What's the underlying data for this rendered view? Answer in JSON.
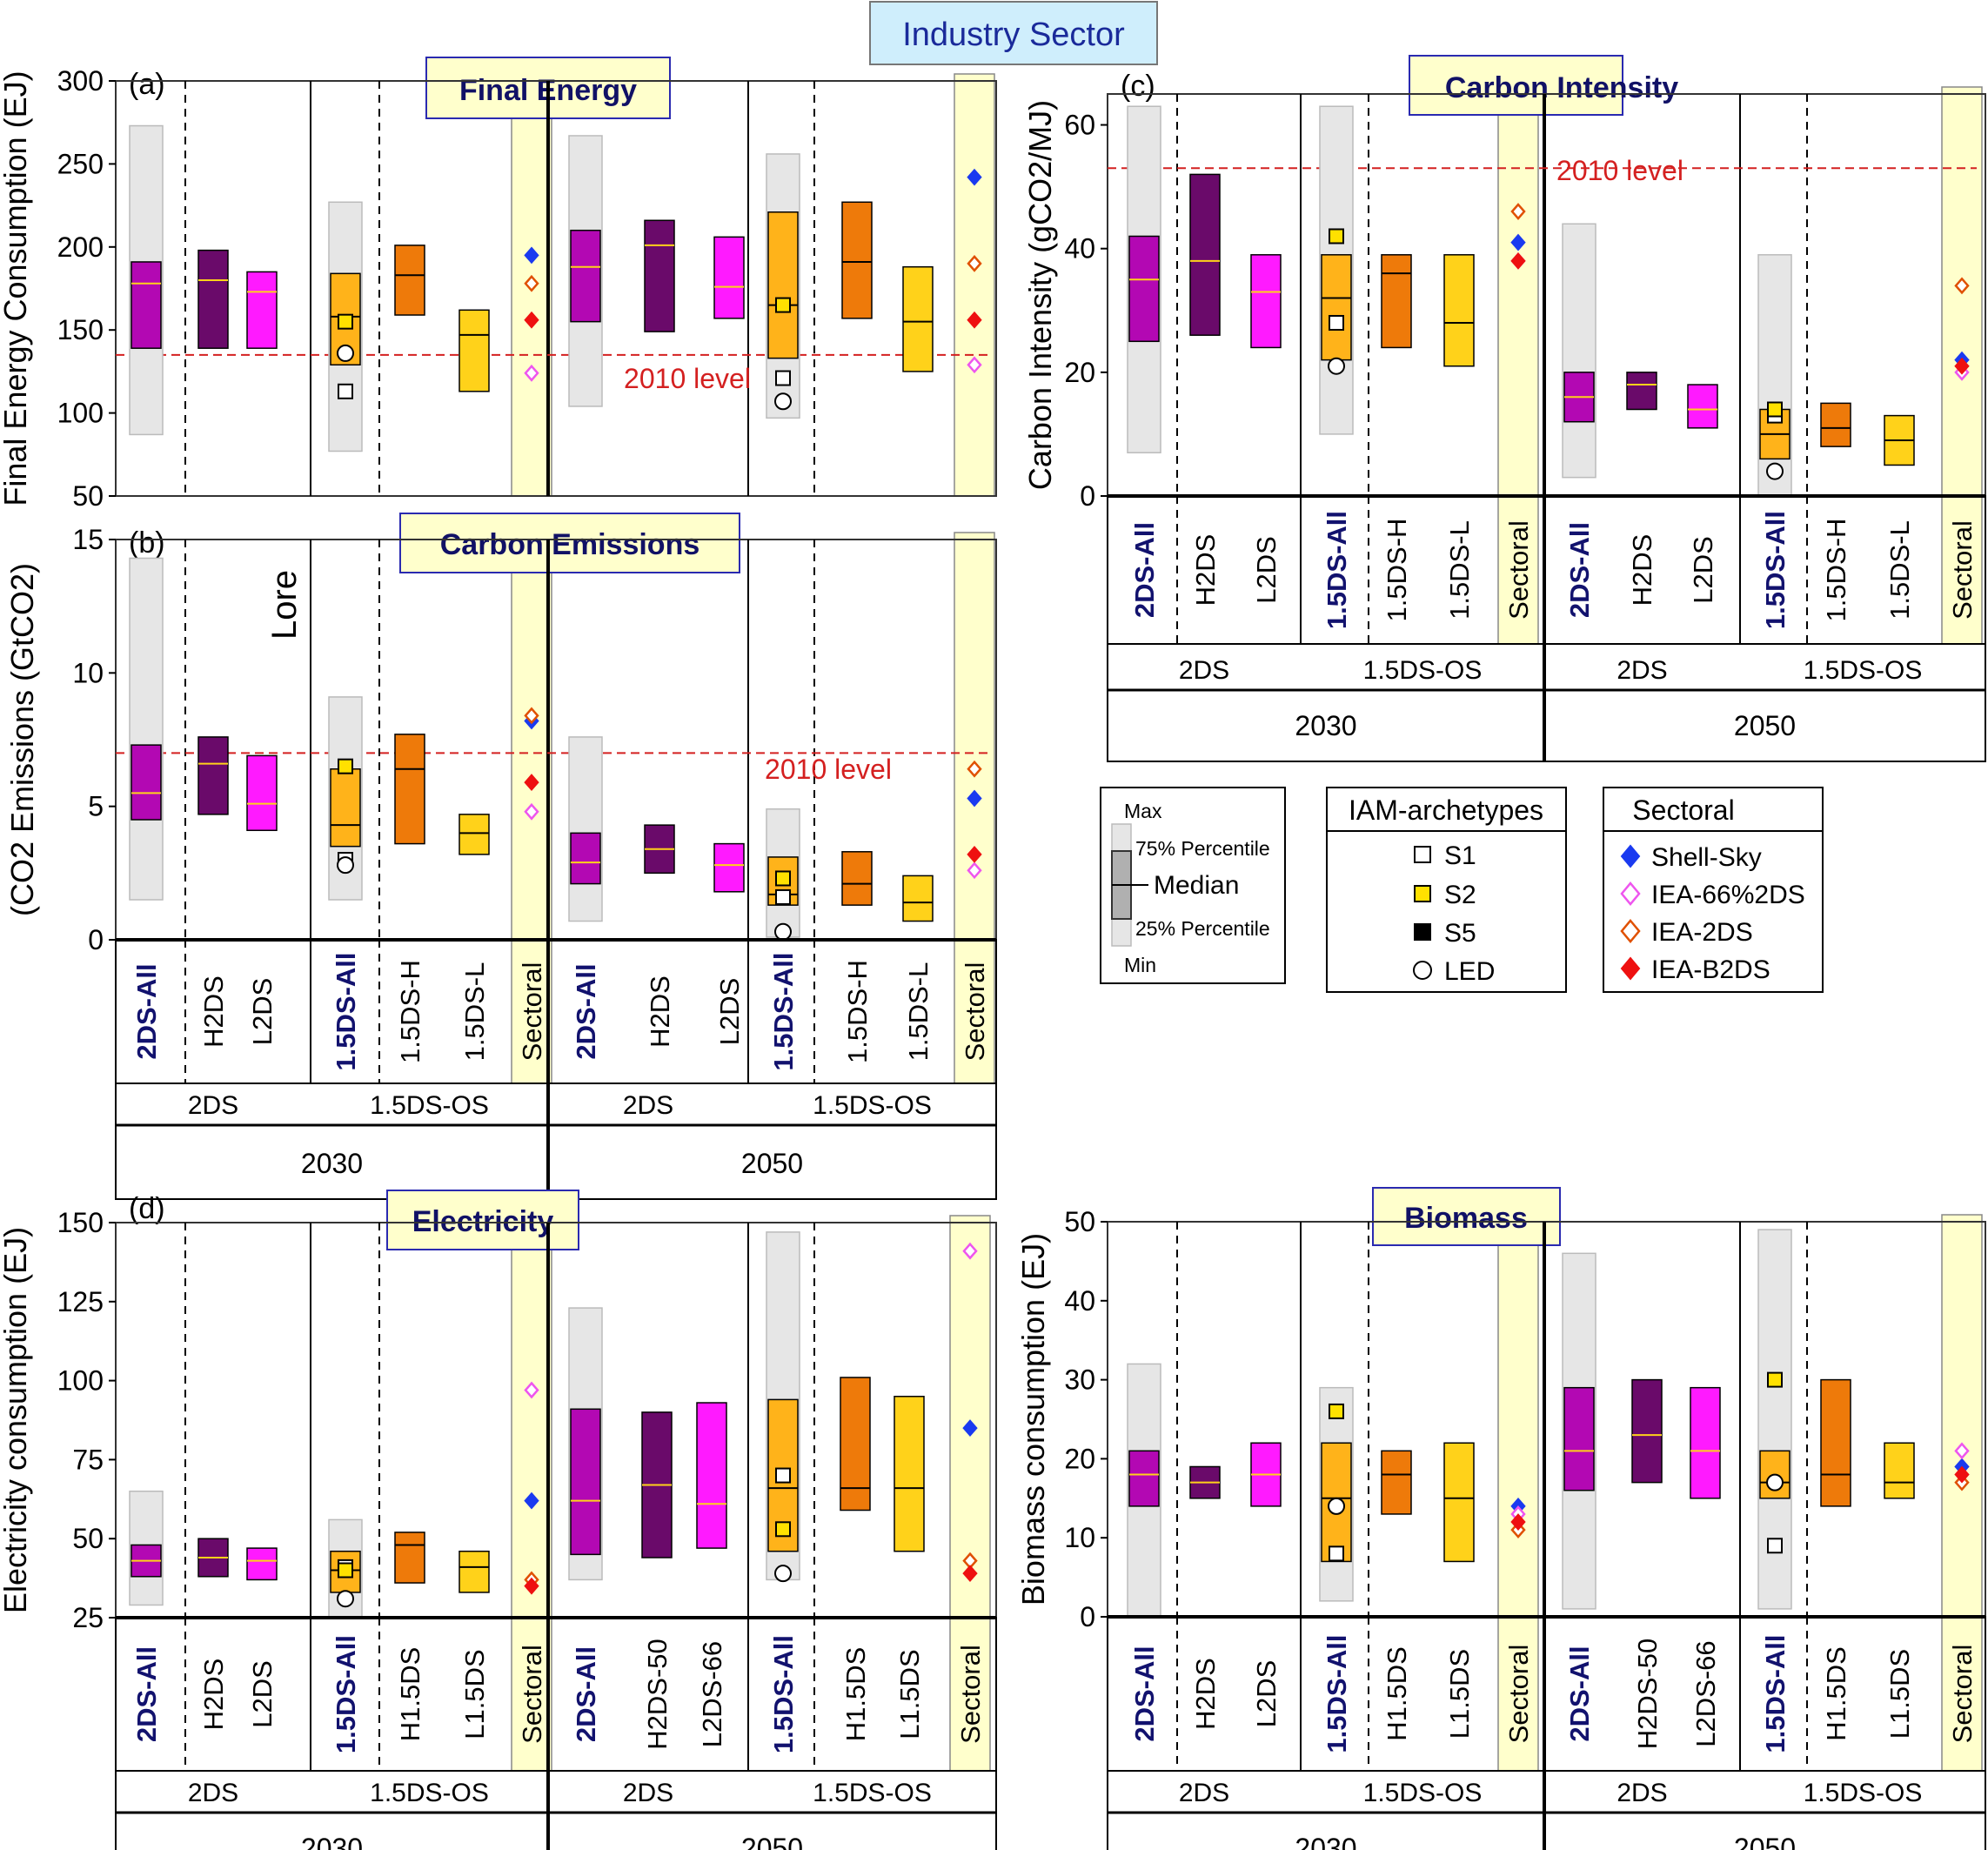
{
  "title": "Industry Sector",
  "labels": {
    "year_2030": "2030",
    "year_2050": "2050",
    "group_2ds": "2DS",
    "group_15": "1.5DS-OS",
    "sectoral": "Sectoral",
    "ref_2010": "2010 level",
    "lore": "Lore"
  },
  "colors": {
    "range": "#e6e6e6",
    "all": "#b308b3",
    "h2ds": "#6a0a6a",
    "l2ds": "#ff1aff",
    "all15": "#ffb31a",
    "h15": "#ee7a0a",
    "l15": "#ffd21a",
    "median": "#ffd21a",
    "ref": "#d42020",
    "sectoral_bg": "#ffffcc",
    "title_box": "#ffffcc",
    "banner": "#cfeefc",
    "all_label": "#12126e",
    "shell": "#1a3af0",
    "iea66": "#ee55ee",
    "iea2": "#e05000",
    "ieab2": "#ee1010"
  },
  "legends": {
    "box": {
      "max": "Max",
      "p75": "75% Percentile",
      "median": "Median",
      "p25": "25% Percentile",
      "min": "Min"
    },
    "iam": {
      "title": "IAM-archetypes",
      "items": [
        "S1",
        "S2",
        "S5",
        "LED"
      ]
    },
    "sectoral": {
      "title": "Sectoral",
      "items": [
        "Shell-Sky",
        "IEA-66%2DS",
        "IEA-2DS",
        "IEA-B2DS"
      ]
    }
  },
  "chart_data": [
    {
      "id": "a",
      "panel_label": "(a)",
      "title": "Final Energy",
      "type": "box",
      "ylabel": "Final Energy Consumption (EJ)",
      "ylim": [
        50,
        300
      ],
      "yticks": [
        50,
        100,
        150,
        200,
        250,
        300
      ],
      "ref_2010": 135,
      "categories": [
        "2DS-All",
        "H2DS",
        "L2DS",
        "1.5DS-All",
        "1.5DS-H",
        "1.5DS-L",
        "Sectoral",
        "2DS-All",
        "H2DS",
        "L2DS",
        "1.5DS-All",
        "1.5DS-H",
        "1.5DS-L",
        "Sectoral"
      ],
      "boxes": {
        "2030": {
          "2DS-All": {
            "min": 87,
            "q1": 139,
            "median": 178,
            "q3": 191,
            "max": 273
          },
          "H2DS": {
            "q1": 139,
            "median": 180,
            "q3": 198
          },
          "L2DS": {
            "q1": 139,
            "median": 173,
            "q3": 185
          },
          "1.5DS-All": {
            "min": 77,
            "q1": 129,
            "median": 158,
            "q3": 184,
            "max": 227
          },
          "1.5DS-H": {
            "q1": 159,
            "median": 183,
            "q3": 201
          },
          "1.5DS-L": {
            "q1": 113,
            "median": 147,
            "q3": 162
          }
        },
        "2050": {
          "2DS-All": {
            "min": 104,
            "q1": 155,
            "median": 188,
            "q3": 210,
            "max": 267
          },
          "H2DS": {
            "q1": 149,
            "median": 201,
            "q3": 216
          },
          "L2DS": {
            "q1": 157,
            "median": 176,
            "q3": 206
          },
          "1.5DS-All": {
            "min": 97,
            "q1": 133,
            "median": 165,
            "q3": 221,
            "max": 256
          },
          "1.5DS-H": {
            "q1": 157,
            "median": 191,
            "q3": 227
          },
          "1.5DS-L": {
            "q1": 125,
            "median": 155,
            "q3": 188
          }
        }
      },
      "archetypes": {
        "2030": {
          "S1": 113,
          "S2": 155,
          "LED": 136
        },
        "2050": {
          "S1": 121,
          "S2": 165,
          "LED": 107
        }
      },
      "sectoral": {
        "2030": {
          "Shell-Sky": 195,
          "IEA-66%2DS": 124,
          "IEA-2DS": 178,
          "IEA-B2DS": 156
        },
        "2050": {
          "Shell-Sky": 242,
          "IEA-66%2DS": 129,
          "IEA-2DS": 190,
          "IEA-B2DS": 156
        }
      }
    },
    {
      "id": "b",
      "panel_label": "(b)",
      "title": "Carbon Emissions",
      "type": "box",
      "ylabel": "(CO2 Emissions (GtCO2)",
      "ylim": [
        0,
        15
      ],
      "yticks": [
        0,
        5,
        10,
        15
      ],
      "ref_2010": 7,
      "categories": [
        "2DS-All",
        "H2DS",
        "L2DS",
        "1.5DS-All",
        "1.5DS-H",
        "1.5DS-L",
        "Sectoral",
        "2DS-All",
        "H2DS",
        "L2DS",
        "1.5DS-All",
        "1.5DS-H",
        "1.5DS-L",
        "Sectoral"
      ],
      "boxes": {
        "2030": {
          "2DS-All": {
            "min": 1.5,
            "q1": 4.5,
            "median": 5.5,
            "q3": 7.3,
            "max": 14.3
          },
          "H2DS": {
            "q1": 4.7,
            "median": 6.6,
            "q3": 7.6
          },
          "L2DS": {
            "q1": 4.1,
            "median": 5.1,
            "q3": 6.9
          },
          "1.5DS-All": {
            "min": 1.5,
            "q1": 3.5,
            "median": 4.3,
            "q3": 6.4,
            "max": 9.1
          },
          "1.5DS-H": {
            "q1": 3.6,
            "median": 6.4,
            "q3": 7.7
          },
          "1.5DS-L": {
            "q1": 3.2,
            "median": 4.0,
            "q3": 4.7
          }
        },
        "2050": {
          "2DS-All": {
            "min": 0.7,
            "q1": 2.1,
            "median": 2.9,
            "q3": 4.0,
            "max": 7.6
          },
          "H2DS": {
            "q1": 2.5,
            "median": 3.4,
            "q3": 4.3
          },
          "L2DS": {
            "q1": 1.8,
            "median": 2.8,
            "q3": 3.6
          },
          "1.5DS-All": {
            "min": 0.1,
            "q1": 1.3,
            "median": 1.7,
            "q3": 3.1,
            "max": 4.9
          },
          "1.5DS-H": {
            "q1": 1.3,
            "median": 2.1,
            "q3": 3.3
          },
          "1.5DS-L": {
            "q1": 0.7,
            "median": 1.4,
            "q3": 2.4
          }
        }
      },
      "archetypes": {
        "2030": {
          "S1": 3.0,
          "S2": 6.5,
          "LED": 2.8
        },
        "2050": {
          "S1": 1.6,
          "S2": 2.3,
          "LED": 0.3
        }
      },
      "sectoral": {
        "2030": {
          "Shell-Sky": 8.2,
          "IEA-66%2DS": 4.8,
          "IEA-2DS": 8.4,
          "IEA-B2DS": 5.9
        },
        "2050": {
          "Shell-Sky": 5.3,
          "IEA-66%2DS": 2.6,
          "IEA-2DS": 6.4,
          "IEA-B2DS": 3.2
        }
      }
    },
    {
      "id": "c",
      "panel_label": "(c)",
      "title": "Carbon Intensity",
      "type": "box",
      "ylabel": "Carbon Intensity (gCO2/MJ)",
      "ylim": [
        0,
        65
      ],
      "yticks": [
        0,
        20,
        40,
        60
      ],
      "ref_2010": 53,
      "categories": [
        "2DS-All",
        "H2DS",
        "L2DS",
        "1.5DS-All",
        "1.5DS-H",
        "1.5DS-L",
        "Sectoral",
        "2DS-All",
        "H2DS",
        "L2DS",
        "1.5DS-All",
        "1.5DS-H",
        "1.5DS-L",
        "Sectoral"
      ],
      "boxes": {
        "2030": {
          "2DS-All": {
            "min": 7,
            "q1": 25,
            "median": 35,
            "q3": 42,
            "max": 63
          },
          "H2DS": {
            "q1": 26,
            "median": 38,
            "q3": 52
          },
          "L2DS": {
            "q1": 24,
            "median": 33,
            "q3": 39
          },
          "1.5DS-All": {
            "min": 10,
            "q1": 22,
            "median": 32,
            "q3": 39,
            "max": 63
          },
          "1.5DS-H": {
            "q1": 24,
            "median": 36,
            "q3": 39
          },
          "1.5DS-L": {
            "q1": 21,
            "median": 28,
            "q3": 39
          }
        },
        "2050": {
          "2DS-All": {
            "min": 3,
            "q1": 12,
            "median": 16,
            "q3": 20,
            "max": 44
          },
          "H2DS": {
            "q1": 14,
            "median": 18,
            "q3": 20
          },
          "L2DS": {
            "q1": 11,
            "median": 14,
            "q3": 18
          },
          "1.5DS-All": {
            "min": 0,
            "q1": 6,
            "median": 10,
            "q3": 14,
            "max": 39
          },
          "1.5DS-H": {
            "q1": 8,
            "median": 11,
            "q3": 15
          },
          "1.5DS-L": {
            "q1": 5,
            "median": 9,
            "q3": 13
          }
        }
      },
      "archetypes": {
        "2030": {
          "S1": 28,
          "S2": 42,
          "LED": 21
        },
        "2050": {
          "S1": 13,
          "S2": 14,
          "LED": 4
        }
      },
      "sectoral": {
        "2030": {
          "Shell-Sky": 41,
          "IEA-66%2DS": 38,
          "IEA-2DS": 46,
          "IEA-B2DS": 38
        },
        "2050": {
          "Shell-Sky": 22,
          "IEA-66%2DS": 20,
          "IEA-2DS": 34,
          "IEA-B2DS": 21
        }
      }
    },
    {
      "id": "d",
      "panel_label": "(d)",
      "title": "Electricity",
      "type": "box",
      "ylabel": "Electricity consumption (EJ)",
      "ylim": [
        25,
        150
      ],
      "yticks": [
        25,
        50,
        75,
        100,
        125,
        150
      ],
      "categories": [
        "2DS-All",
        "H2DS",
        "L2DS",
        "1.5DS-All",
        "H1.5DS",
        "L1.5DS",
        "Sectoral",
        "2DS-All",
        "H2DS-50",
        "L2DS-66",
        "1.5DS-All",
        "H1.5DS",
        "L1.5DS",
        "Sectoral"
      ],
      "boxes": {
        "2030": {
          "2DS-All": {
            "min": 29,
            "q1": 38,
            "median": 43,
            "q3": 48,
            "max": 65
          },
          "H2DS": {
            "q1": 38,
            "median": 44,
            "q3": 50
          },
          "L2DS": {
            "q1": 37,
            "median": 43,
            "q3": 47
          },
          "1.5DS-All": {
            "min": 25,
            "q1": 33,
            "median": 40,
            "q3": 46,
            "max": 56
          },
          "H1.5DS": {
            "q1": 36,
            "median": 48,
            "q3": 52
          },
          "L1.5DS": {
            "q1": 33,
            "median": 41,
            "q3": 46
          }
        },
        "2050": {
          "2DS-All": {
            "min": 37,
            "q1": 45,
            "median": 62,
            "q3": 91,
            "max": 123
          },
          "H2DS-50": {
            "q1": 44,
            "median": 67,
            "q3": 90
          },
          "L2DS-66": {
            "q1": 47,
            "median": 61,
            "q3": 93
          },
          "1.5DS-All": {
            "min": 37,
            "q1": 46,
            "median": 66,
            "q3": 94,
            "max": 147
          },
          "H1.5DS": {
            "q1": 59,
            "median": 66,
            "q3": 101
          },
          "L1.5DS": {
            "q1": 46,
            "median": 66,
            "q3": 95
          }
        }
      },
      "archetypes": {
        "2030": {
          "S1": 41,
          "S2": 40,
          "LED": 31
        },
        "2050": {
          "S1": 70,
          "S2": 53,
          "LED": 39
        }
      },
      "sectoral": {
        "2030": {
          "Shell-Sky": 62,
          "IEA-66%2DS": 97,
          "IEA-2DS": 37,
          "IEA-B2DS": 35
        },
        "2050": {
          "Shell-Sky": 85,
          "IEA-66%2DS": 141,
          "IEA-2DS": 43,
          "IEA-B2DS": 39
        }
      }
    },
    {
      "id": "e",
      "panel_label": "",
      "title": "Biomass",
      "type": "box",
      "ylabel": "Biomass consumption (EJ)",
      "ylim": [
        0,
        50
      ],
      "yticks": [
        0,
        10,
        20,
        30,
        40,
        50
      ],
      "categories": [
        "2DS-All",
        "H2DS",
        "L2DS",
        "1.5DS-All",
        "H1.5DS",
        "L1.5DS",
        "Sectoral",
        "2DS-All",
        "H2DS-50",
        "L2DS-66",
        "1.5DS-All",
        "H1.5DS",
        "L1.5DS",
        "Sectoral"
      ],
      "boxes": {
        "2030": {
          "2DS-All": {
            "min": 0,
            "q1": 14,
            "median": 18,
            "q3": 21,
            "max": 32
          },
          "H2DS": {
            "q1": 15,
            "median": 17,
            "q3": 19
          },
          "L2DS": {
            "q1": 14,
            "median": 18,
            "q3": 22
          },
          "1.5DS-All": {
            "min": 2,
            "q1": 7,
            "median": 15,
            "q3": 22,
            "max": 29
          },
          "H1.5DS": {
            "q1": 13,
            "median": 18,
            "q3": 21
          },
          "L1.5DS": {
            "q1": 7,
            "median": 15,
            "q3": 22
          }
        },
        "2050": {
          "2DS-All": {
            "min": 1,
            "q1": 16,
            "median": 21,
            "q3": 29,
            "max": 46
          },
          "H2DS-50": {
            "q1": 17,
            "median": 23,
            "q3": 30
          },
          "L2DS-66": {
            "q1": 15,
            "median": 21,
            "q3": 29
          },
          "1.5DS-All": {
            "min": 1,
            "q1": 15,
            "median": 17,
            "q3": 21,
            "max": 49
          },
          "H1.5DS": {
            "q1": 14,
            "median": 18,
            "q3": 30
          },
          "L1.5DS": {
            "q1": 15,
            "median": 17,
            "q3": 22
          }
        }
      },
      "archetypes": {
        "2030": {
          "S1": 8,
          "S2": 26,
          "LED": 14
        },
        "2050": {
          "S1": 9,
          "S2": 30,
          "LED": 17
        }
      },
      "sectoral": {
        "2030": {
          "Shell-Sky": 14,
          "IEA-66%2DS": 13,
          "IEA-2DS": 11,
          "IEA-B2DS": 12
        },
        "2050": {
          "Shell-Sky": 19,
          "IEA-66%2DS": 21,
          "IEA-2DS": 17,
          "IEA-B2DS": 18
        }
      }
    }
  ]
}
